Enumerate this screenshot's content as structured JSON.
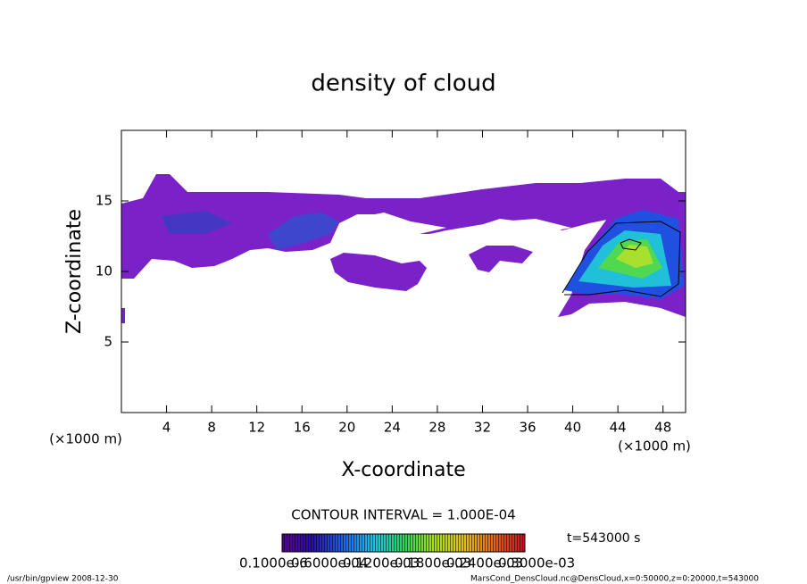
{
  "chart_data": {
    "type": "contour",
    "title": "density of cloud",
    "x_label": "X-coordinate",
    "y_label": "Z-coordinate",
    "x_unit": "(×1000 m)",
    "y_unit": "(×1000 m)",
    "xlim": [
      0,
      50
    ],
    "ylim": [
      0,
      20
    ],
    "xticks": [
      4,
      8,
      12,
      16,
      20,
      24,
      28,
      32,
      36,
      40,
      44,
      48
    ],
    "yticks": [
      5,
      10,
      15
    ],
    "contour_interval": "CONTOUR INTERVAL = 1.000E-04",
    "time_label": "t=543000 s",
    "colorbar_labels": [
      "0.1000e-6",
      "0.6000e-04",
      "0.1200e-03",
      "0.1800e-03",
      "0.2400e-03",
      "0.3000e-03"
    ],
    "footer_left": "/usr/bin/gpview   2008-12-30",
    "footer_right": "MarsCond_DensCloud.nc@DensCloud,x=0:50000,z=0:20000,t=543000"
  }
}
